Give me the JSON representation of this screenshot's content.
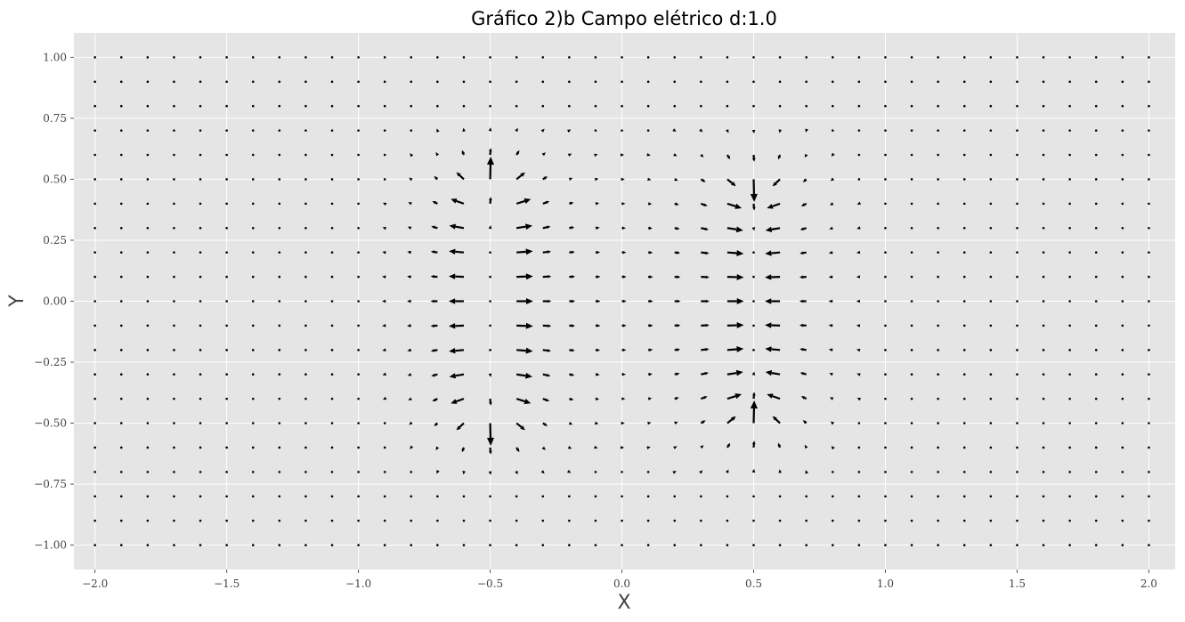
{
  "chart_data": {
    "type": "quiver",
    "title": "Gráfico 2)b Campo elétrico d:1.0",
    "xlabel": "X",
    "ylabel": "Y",
    "xlim": [
      -2.08,
      2.1
    ],
    "ylim": [
      -1.1,
      1.1
    ],
    "x_ticks": [
      -2.0,
      -1.5,
      -1.0,
      -0.5,
      0.0,
      0.5,
      1.0,
      1.5,
      2.0
    ],
    "x_tick_labels": [
      "−2.0",
      "−1.5",
      "−1.0",
      "−0.5",
      "0.0",
      "0.5",
      "1.0",
      "1.5",
      "2.0"
    ],
    "y_ticks": [
      -1.0,
      -0.75,
      -0.5,
      -0.25,
      0.0,
      0.25,
      0.5,
      0.75,
      1.0
    ],
    "y_tick_labels": [
      "−1.00",
      "−0.75",
      "−0.50",
      "−0.25",
      "0.00",
      "0.25",
      "0.50",
      "0.75",
      "1.00"
    ],
    "grid": true,
    "style": "ggplot",
    "background": "#e5e5e5",
    "grid_color": "#ffffff",
    "arrow_color": "#000000",
    "grid_points": {
      "x_start": -2.0,
      "x_end": 2.0,
      "x_step": 0.1,
      "y_start": -1.0,
      "y_end": 1.0,
      "y_step": 0.1
    },
    "charges": [
      {
        "type": "positive",
        "x": -0.5,
        "y_min": -0.5,
        "y_max": 0.5
      },
      {
        "type": "negative",
        "x": 0.5,
        "y_min": -0.5,
        "y_max": 0.5
      }
    ]
  }
}
